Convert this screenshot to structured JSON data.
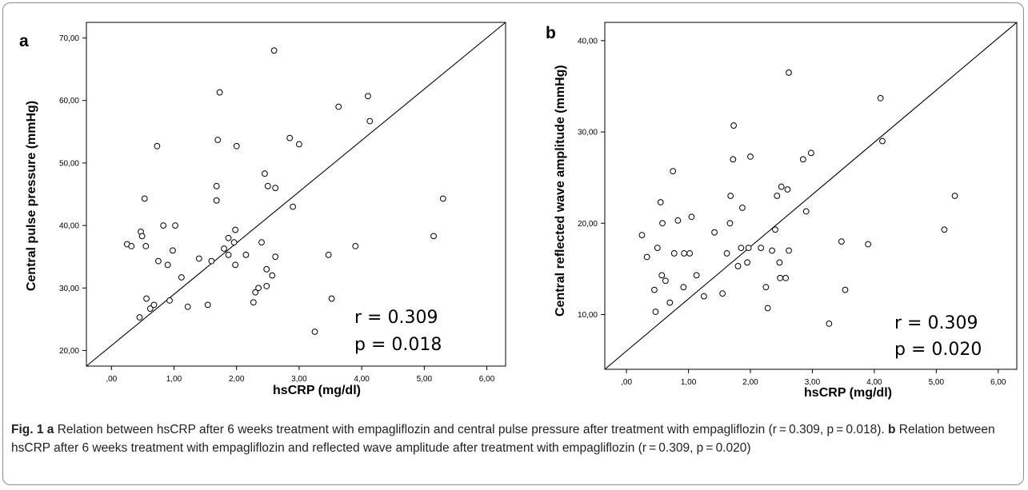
{
  "chart_data": [
    {
      "type": "scatter",
      "panel": "a",
      "xlabel": "hsCRP (mg/dl)",
      "ylabel": "Central pulse pressure (mmHg)",
      "xlim": [
        -0.4,
        6.3
      ],
      "ylim": [
        17.5,
        72.5
      ],
      "x_ticks": [
        0,
        1,
        2,
        3,
        4,
        5,
        6
      ],
      "x_tick_labels": [
        ",00",
        "1,00",
        "2,00",
        "3,00",
        "4,00",
        "5,00",
        "6,00"
      ],
      "y_ticks": [
        20,
        30,
        40,
        50,
        60,
        70
      ],
      "y_tick_labels": [
        "20,00",
        "30,00",
        "40,00",
        "50,00",
        "60,00",
        "70,00"
      ],
      "r_text": "r = 0.309",
      "p_text": "p = 0.018",
      "grid": false,
      "points": [
        {
          "x": 0.25,
          "y": 37.0
        },
        {
          "x": 0.32,
          "y": 36.7
        },
        {
          "x": 0.45,
          "y": 25.3
        },
        {
          "x": 0.47,
          "y": 39.0
        },
        {
          "x": 0.49,
          "y": 38.3
        },
        {
          "x": 0.53,
          "y": 44.3
        },
        {
          "x": 0.55,
          "y": 36.7
        },
        {
          "x": 0.56,
          "y": 28.3
        },
        {
          "x": 0.62,
          "y": 26.7
        },
        {
          "x": 0.68,
          "y": 27.3
        },
        {
          "x": 0.73,
          "y": 52.7
        },
        {
          "x": 0.75,
          "y": 34.3
        },
        {
          "x": 0.83,
          "y": 40.0
        },
        {
          "x": 0.9,
          "y": 33.7
        },
        {
          "x": 0.93,
          "y": 28.0
        },
        {
          "x": 0.98,
          "y": 36.0
        },
        {
          "x": 1.02,
          "y": 40.0
        },
        {
          "x": 1.12,
          "y": 31.7
        },
        {
          "x": 1.22,
          "y": 27.0
        },
        {
          "x": 1.4,
          "y": 34.7
        },
        {
          "x": 1.54,
          "y": 27.3
        },
        {
          "x": 1.6,
          "y": 34.3
        },
        {
          "x": 1.68,
          "y": 46.3
        },
        {
          "x": 1.68,
          "y": 44.0
        },
        {
          "x": 1.7,
          "y": 53.7
        },
        {
          "x": 1.73,
          "y": 61.3
        },
        {
          "x": 1.8,
          "y": 36.3
        },
        {
          "x": 1.87,
          "y": 38.0
        },
        {
          "x": 1.87,
          "y": 35.3
        },
        {
          "x": 1.96,
          "y": 37.3
        },
        {
          "x": 1.98,
          "y": 39.3
        },
        {
          "x": 1.98,
          "y": 33.7
        },
        {
          "x": 2.0,
          "y": 52.7
        },
        {
          "x": 2.15,
          "y": 35.3
        },
        {
          "x": 2.27,
          "y": 27.7
        },
        {
          "x": 2.3,
          "y": 29.3
        },
        {
          "x": 2.35,
          "y": 30.0
        },
        {
          "x": 2.4,
          "y": 37.3
        },
        {
          "x": 2.45,
          "y": 48.3
        },
        {
          "x": 2.48,
          "y": 33.0
        },
        {
          "x": 2.48,
          "y": 30.3
        },
        {
          "x": 2.5,
          "y": 46.3
        },
        {
          "x": 2.57,
          "y": 32.0
        },
        {
          "x": 2.6,
          "y": 68.0
        },
        {
          "x": 2.62,
          "y": 46.0
        },
        {
          "x": 2.62,
          "y": 35.0
        },
        {
          "x": 2.85,
          "y": 54.0
        },
        {
          "x": 2.9,
          "y": 43.0
        },
        {
          "x": 3.0,
          "y": 53.0
        },
        {
          "x": 3.25,
          "y": 23.0
        },
        {
          "x": 3.47,
          "y": 35.3
        },
        {
          "x": 3.52,
          "y": 28.3
        },
        {
          "x": 3.63,
          "y": 59.0
        },
        {
          "x": 3.9,
          "y": 36.7
        },
        {
          "x": 4.1,
          "y": 60.7
        },
        {
          "x": 4.13,
          "y": 56.7
        },
        {
          "x": 5.15,
          "y": 38.3
        },
        {
          "x": 5.3,
          "y": 44.3
        }
      ],
      "fit_line": [
        [
          -0.4,
          17.5
        ],
        [
          6.3,
          72.5
        ]
      ]
    },
    {
      "type": "scatter",
      "panel": "b",
      "xlabel": "hsCRP (mg/dl)",
      "ylabel": "Central reflected wave amplitude (mmHg)",
      "xlim": [
        -0.35,
        6.3
      ],
      "ylim": [
        4.0,
        42.0
      ],
      "x_ticks": [
        0,
        1,
        2,
        3,
        4,
        5,
        6
      ],
      "x_tick_labels": [
        ",00",
        "1,00",
        "2,00",
        "3,00",
        "4,00",
        "5,00",
        "6,00"
      ],
      "y_ticks": [
        10,
        20,
        30,
        40
      ],
      "y_tick_labels": [
        "10,00",
        "20,00",
        "30,00",
        "40,00"
      ],
      "r_text": "r = 0.309",
      "p_text": "p = 0.020",
      "grid": false,
      "points": [
        {
          "x": 0.25,
          "y": 18.7
        },
        {
          "x": 0.33,
          "y": 16.3
        },
        {
          "x": 0.45,
          "y": 12.7
        },
        {
          "x": 0.47,
          "y": 10.3
        },
        {
          "x": 0.5,
          "y": 17.3
        },
        {
          "x": 0.55,
          "y": 22.3
        },
        {
          "x": 0.57,
          "y": 14.3
        },
        {
          "x": 0.58,
          "y": 20.0
        },
        {
          "x": 0.63,
          "y": 13.7
        },
        {
          "x": 0.7,
          "y": 11.3
        },
        {
          "x": 0.75,
          "y": 25.7
        },
        {
          "x": 0.77,
          "y": 16.7
        },
        {
          "x": 0.83,
          "y": 20.3
        },
        {
          "x": 0.92,
          "y": 13.0
        },
        {
          "x": 0.93,
          "y": 16.7
        },
        {
          "x": 1.02,
          "y": 16.7
        },
        {
          "x": 1.05,
          "y": 20.7
        },
        {
          "x": 1.13,
          "y": 14.3
        },
        {
          "x": 1.25,
          "y": 12.0
        },
        {
          "x": 1.42,
          "y": 19.0
        },
        {
          "x": 1.55,
          "y": 12.3
        },
        {
          "x": 1.62,
          "y": 16.7
        },
        {
          "x": 1.67,
          "y": 20.0
        },
        {
          "x": 1.68,
          "y": 23.0
        },
        {
          "x": 1.72,
          "y": 27.0
        },
        {
          "x": 1.73,
          "y": 30.7
        },
        {
          "x": 1.8,
          "y": 15.3
        },
        {
          "x": 1.85,
          "y": 17.3
        },
        {
          "x": 1.87,
          "y": 21.7
        },
        {
          "x": 1.95,
          "y": 15.7
        },
        {
          "x": 1.97,
          "y": 17.3
        },
        {
          "x": 2.0,
          "y": 27.3
        },
        {
          "x": 2.17,
          "y": 17.3
        },
        {
          "x": 2.25,
          "y": 13.0
        },
        {
          "x": 2.28,
          "y": 10.7
        },
        {
          "x": 2.35,
          "y": 17.0
        },
        {
          "x": 2.4,
          "y": 19.3
        },
        {
          "x": 2.43,
          "y": 23.0
        },
        {
          "x": 2.47,
          "y": 15.7
        },
        {
          "x": 2.48,
          "y": 14.0
        },
        {
          "x": 2.5,
          "y": 24.0
        },
        {
          "x": 2.57,
          "y": 14.0
        },
        {
          "x": 2.6,
          "y": 23.7
        },
        {
          "x": 2.62,
          "y": 36.5
        },
        {
          "x": 2.62,
          "y": 17.0
        },
        {
          "x": 2.85,
          "y": 27.0
        },
        {
          "x": 2.9,
          "y": 21.3
        },
        {
          "x": 2.98,
          "y": 27.7
        },
        {
          "x": 3.27,
          "y": 9.0
        },
        {
          "x": 3.47,
          "y": 18.0
        },
        {
          "x": 3.53,
          "y": 12.7
        },
        {
          "x": 3.9,
          "y": 17.7
        },
        {
          "x": 4.1,
          "y": 33.7
        },
        {
          "x": 4.13,
          "y": 29.0
        },
        {
          "x": 5.13,
          "y": 19.3
        },
        {
          "x": 5.3,
          "y": 23.0
        }
      ],
      "fit_line": [
        [
          -0.35,
          4.0
        ],
        [
          6.3,
          42.0
        ]
      ]
    }
  ],
  "caption": {
    "fig_label": "Fig. 1",
    "a_label": "a",
    "a_text": "Relation between hsCRP after 6 weeks treatment with empagliflozin and central pulse pressure after treatment with empagliflozin (r = 0.309, p = 0.018).",
    "b_label": "b",
    "b_text": "Relation between hsCRP after 6 weeks treatment with empagliflozin and reflected wave amplitude after treatment with empagliflozin (r = 0.309, p = 0.020)"
  }
}
